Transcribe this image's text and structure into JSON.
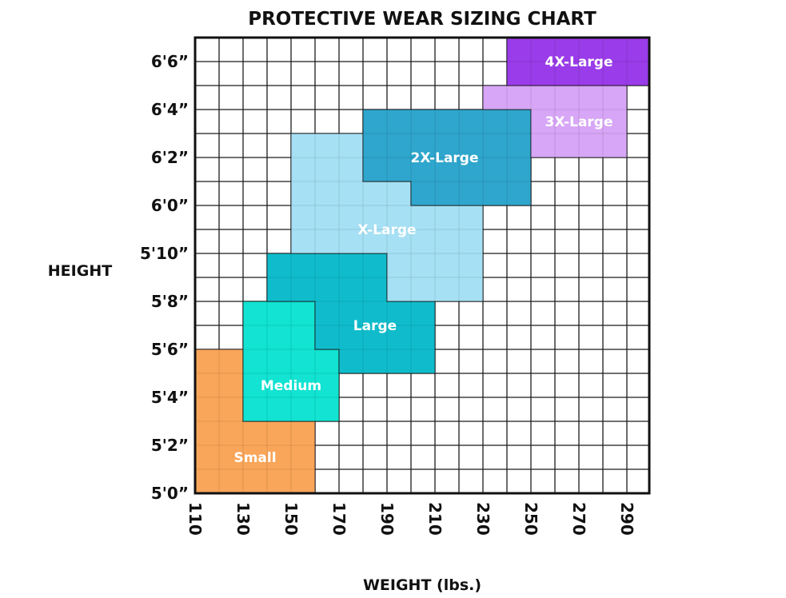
{
  "chart_data": {
    "type": "area",
    "title": "PROTECTIVE WEAR SIZING CHART",
    "xlabel": "WEIGHT (lbs.)",
    "ylabel": "HEIGHT",
    "xlim": [
      110,
      300
    ],
    "ylim": [
      60,
      79
    ],
    "grid": true,
    "x_ticks": [
      110,
      130,
      150,
      170,
      190,
      210,
      230,
      250,
      270,
      290
    ],
    "x_tick_labels": [
      "110",
      "130",
      "150",
      "170",
      "190",
      "210",
      "230",
      "250",
      "270",
      "290"
    ],
    "y_ticks": [
      60,
      62,
      64,
      66,
      68,
      70,
      72,
      74,
      76,
      78
    ],
    "y_tick_labels": [
      "5'0”",
      "5'2”",
      "5'4”",
      "5'6”",
      "5'8”",
      "5'10”",
      "6'0”",
      "6'2”",
      "6'4”",
      "6'6”"
    ],
    "regions": [
      {
        "name": "Small",
        "color": "#f9a65a",
        "points": [
          [
            110,
            66
          ],
          [
            130,
            66
          ],
          [
            130,
            63
          ],
          [
            160,
            63
          ],
          [
            160,
            60
          ],
          [
            110,
            60
          ]
        ]
      },
      {
        "name": "Medium",
        "color": "#12e3d2",
        "points": [
          [
            130,
            68
          ],
          [
            160,
            68
          ],
          [
            160,
            66
          ],
          [
            170,
            66
          ],
          [
            170,
            63
          ],
          [
            130,
            63
          ]
        ]
      },
      {
        "name": "Large",
        "color": "#10bccb",
        "points": [
          [
            140,
            70
          ],
          [
            190,
            70
          ],
          [
            190,
            68
          ],
          [
            210,
            68
          ],
          [
            210,
            65
          ],
          [
            170,
            65
          ],
          [
            170,
            66
          ],
          [
            160,
            66
          ],
          [
            160,
            68
          ],
          [
            140,
            68
          ]
        ]
      },
      {
        "name": "X-Large",
        "color": "#a6e0f4",
        "points": [
          [
            150,
            75
          ],
          [
            180,
            75
          ],
          [
            180,
            73
          ],
          [
            200,
            73
          ],
          [
            200,
            72
          ],
          [
            230,
            72
          ],
          [
            230,
            68
          ],
          [
            190,
            68
          ],
          [
            190,
            70
          ],
          [
            150,
            70
          ]
        ]
      },
      {
        "name": "2X-Large",
        "color": "#2fa6cd",
        "points": [
          [
            180,
            76
          ],
          [
            250,
            76
          ],
          [
            250,
            72
          ],
          [
            200,
            72
          ],
          [
            200,
            73
          ],
          [
            180,
            73
          ]
        ]
      },
      {
        "name": "3X-Large",
        "color": "#d7a6f6",
        "points": [
          [
            230,
            77
          ],
          [
            290,
            77
          ],
          [
            290,
            74
          ],
          [
            250,
            74
          ],
          [
            250,
            76
          ],
          [
            230,
            76
          ]
        ]
      },
      {
        "name": "4X-Large",
        "color": "#9a3ce9",
        "points": [
          [
            240,
            79
          ],
          [
            300,
            79
          ],
          [
            300,
            77
          ],
          [
            240,
            77
          ]
        ]
      }
    ]
  }
}
